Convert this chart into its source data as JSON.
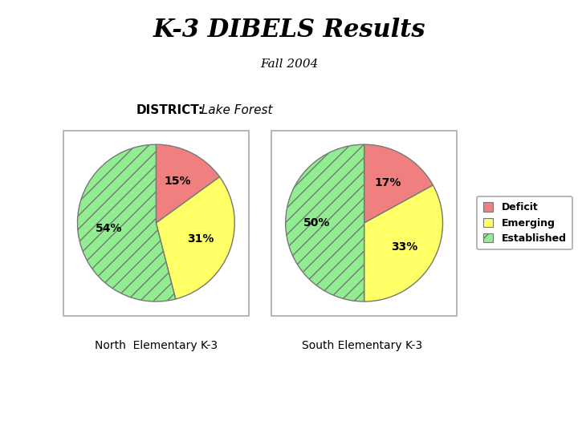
{
  "title": "K-3 DIBELS Results",
  "subtitle": "Fall 2004",
  "district_label": "DISTRICT:",
  "district_value": "  Lake Forest",
  "north_label": "North  Elementary K-3",
  "south_label": "South Elementary K-3",
  "north_values": [
    15,
    31,
    54
  ],
  "south_values": [
    17,
    33,
    50
  ],
  "categories": [
    "Deficit",
    "Emerging",
    "Established"
  ],
  "colors": [
    "#F08080",
    "#FFFF66",
    "#90EE90"
  ],
  "hatches": [
    "",
    "",
    "//"
  ],
  "background": "#ffffff",
  "fig_width": 7.2,
  "fig_height": 5.4,
  "fig_dpi": 100
}
